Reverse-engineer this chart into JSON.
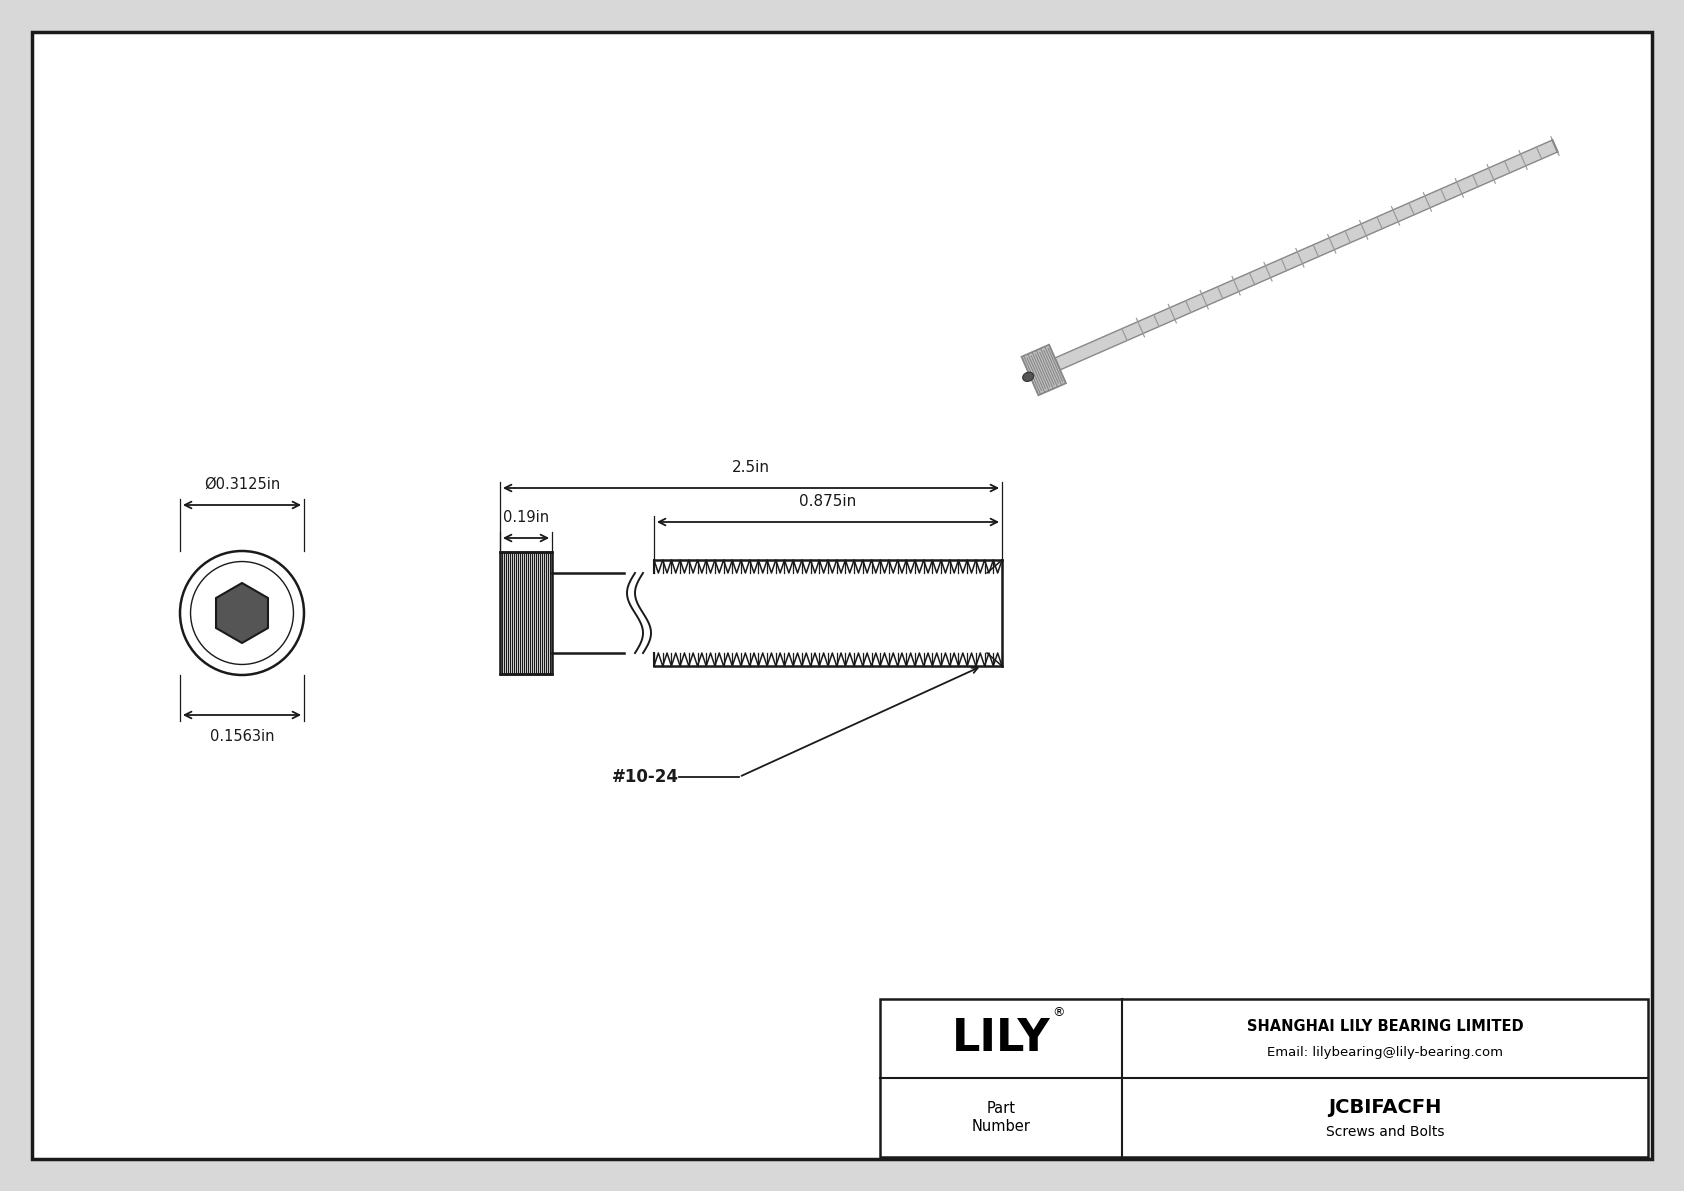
{
  "bg_color": "#d8d8d8",
  "drawing_bg": "#ffffff",
  "border_color": "#1a1a1a",
  "line_color": "#1a1a1a",
  "dim_color": "#1a1a1a",
  "company": "SHANGHAI LILY BEARING LIMITED",
  "email": "Email: lilybearing@lily-bearing.com",
  "part_number": "JCBIFACFH",
  "part_category": "Screws and Bolts",
  "dim_total_length": "2.5in",
  "dim_head_length": "0.19in",
  "dim_thread_length": "0.875in",
  "dim_diameter": "Ø0.3125in",
  "dim_head_height": "0.1563in",
  "thread_label": "#10-24",
  "logo_text": "LILY",
  "logo_reg": "®",
  "photo_color": "#aaaaaa",
  "photo_shadow": "#888888"
}
